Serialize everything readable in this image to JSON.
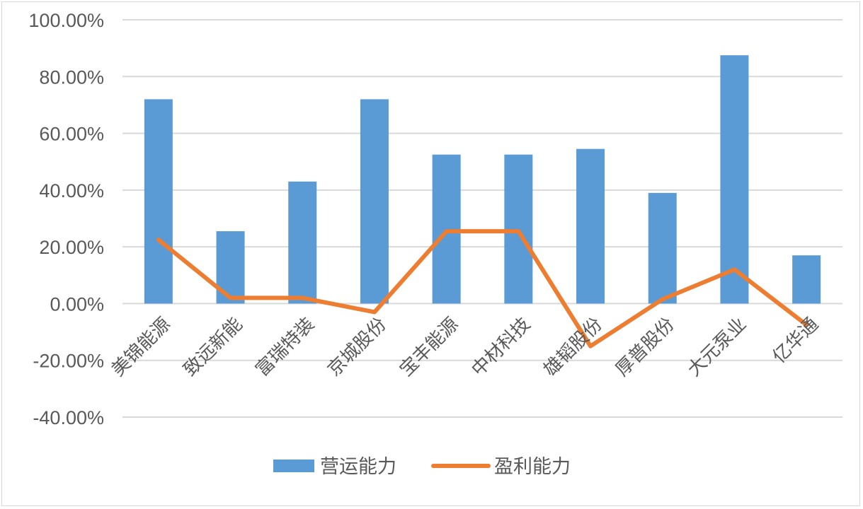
{
  "chart_data": {
    "type": "bar+line",
    "categories": [
      "美锦能源",
      "致远新能",
      "富瑞特装",
      "京城股份",
      "宝丰能源",
      "中材科技",
      "雄韬股份",
      "厚普股份",
      "大元泵业",
      "亿华通"
    ],
    "series": [
      {
        "name": "营运能力",
        "type": "bar",
        "color": "#5b9bd5",
        "values": [
          72,
          25.5,
          43,
          72,
          52.5,
          52.5,
          54.5,
          39,
          87.5,
          17
        ]
      },
      {
        "name": "盈利能力",
        "type": "line",
        "color": "#ed7d31",
        "values": [
          22.5,
          2,
          2,
          -3,
          25.5,
          25.5,
          -15,
          1.5,
          12,
          -7.5
        ]
      }
    ],
    "y_ticks": [
      "100.00%",
      "80.00%",
      "60.00%",
      "40.00%",
      "20.00%",
      "0.00%",
      "-20.00%",
      "-40.00%"
    ],
    "ylim": [
      -40,
      100
    ],
    "grid": true,
    "legend": "bottom"
  }
}
